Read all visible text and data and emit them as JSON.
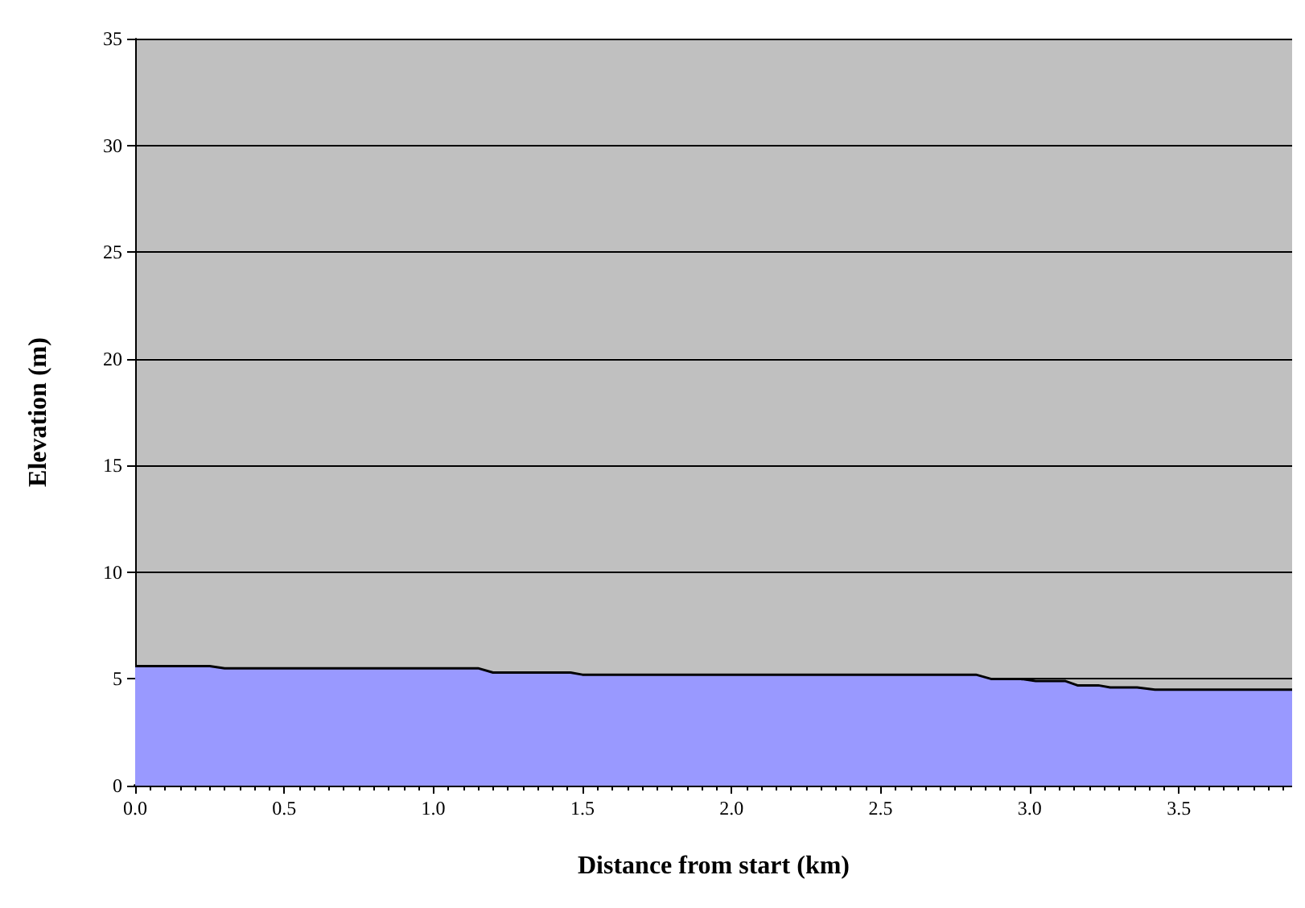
{
  "chart_data": {
    "type": "area",
    "xlabel": "Distance from start (km)",
    "ylabel": "Elevation (m)",
    "x": [
      0,
      0.25,
      0.3,
      1.15,
      1.2,
      1.46,
      1.5,
      2.82,
      2.87,
      2.97,
      3.02,
      3.12,
      3.16,
      3.23,
      3.27,
      3.36,
      3.42,
      3.88
    ],
    "series": [
      {
        "color": "#9999ff",
        "values": [
          5.6,
          5.6,
          5.5,
          5.5,
          5.3,
          5.3,
          5.2,
          5.2,
          5.0,
          5.0,
          4.9,
          4.9,
          4.7,
          4.7,
          4.6,
          4.6,
          4.5,
          4.5
        ]
      }
    ],
    "xlim": [
      0,
      3.88
    ],
    "xticks": [
      {
        "value": 0,
        "label": "0.0"
      },
      0.5,
      {
        "value": 1,
        "label": "1.0"
      },
      1.5,
      {
        "value": 2,
        "label": "2.0"
      },
      2.5,
      {
        "value": 3,
        "label": "3.0"
      },
      3.5
    ],
    "ylim": [
      0,
      35
    ],
    "yticks": [
      0,
      5,
      10,
      15,
      20,
      25,
      30,
      35
    ],
    "grid": "y",
    "marker": "none",
    "line_style": "solid"
  }
}
